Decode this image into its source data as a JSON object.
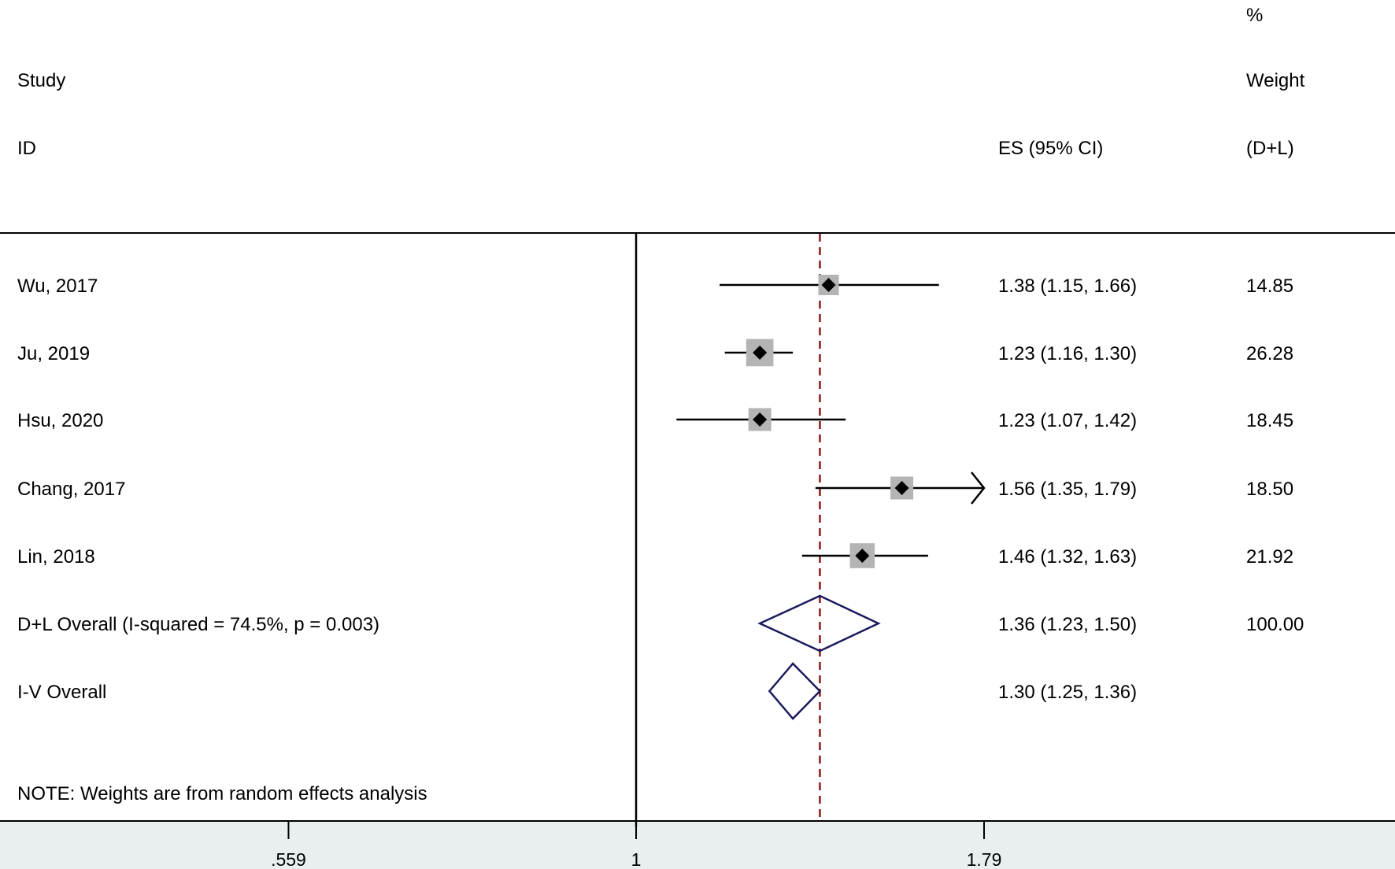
{
  "chart_data": {
    "type": "forest",
    "headers": {
      "study_line1": "Study",
      "study_line2": "ID",
      "es": "ES (95% CI)",
      "weight_line1": "%",
      "weight_line2": "Weight",
      "weight_line3": "(D+L)"
    },
    "x_scale": "log",
    "null_value": 1,
    "overall_line_value": 1.36,
    "xlim": [
      0.559,
      1.79
    ],
    "x_ticks": [
      {
        "value": 0.559,
        "label": ".559"
      },
      {
        "value": 1,
        "label": "1"
      },
      {
        "value": 1.79,
        "label": "1.79"
      }
    ],
    "studies": [
      {
        "id": "Wu, 2017",
        "es": 1.38,
        "lower": 1.15,
        "upper": 1.66,
        "es_label": "1.38 (1.15, 1.66)",
        "weight": 14.85,
        "weight_label": "14.85"
      },
      {
        "id": "Ju, 2019",
        "es": 1.23,
        "lower": 1.16,
        "upper": 1.3,
        "es_label": "1.23 (1.16, 1.30)",
        "weight": 26.28,
        "weight_label": "26.28"
      },
      {
        "id": "Hsu, 2020",
        "es": 1.23,
        "lower": 1.07,
        "upper": 1.42,
        "es_label": "1.23 (1.07, 1.42)",
        "weight": 18.45,
        "weight_label": "18.45"
      },
      {
        "id": "Chang, 2017",
        "es": 1.56,
        "lower": 1.35,
        "upper": 1.79,
        "es_label": "1.56 (1.35, 1.79)",
        "weight": 18.5,
        "weight_label": "18.50"
      },
      {
        "id": "Lin, 2018",
        "es": 1.46,
        "lower": 1.32,
        "upper": 1.63,
        "es_label": "1.46 (1.32, 1.63)",
        "weight": 21.92,
        "weight_label": "21.92"
      }
    ],
    "pooled": [
      {
        "id": "D+L Overall  (I-squared = 74.5%, p = 0.003)",
        "es": 1.36,
        "lower": 1.23,
        "upper": 1.5,
        "es_label": "1.36 (1.23, 1.50)",
        "weight_label": "100.00"
      },
      {
        "id": "I-V Overall",
        "es": 1.3,
        "lower": 1.25,
        "upper": 1.36,
        "es_label": "1.30 (1.25, 1.36)",
        "weight_label": ""
      }
    ],
    "note": "NOTE: Weights are from random effects analysis",
    "colors": {
      "marker": "#000000",
      "weight_box": "#b4b4b4",
      "diamond": "#1a1a5e",
      "overall_line": "#8b1a1a",
      "axis_band": "#e9eff0"
    }
  }
}
